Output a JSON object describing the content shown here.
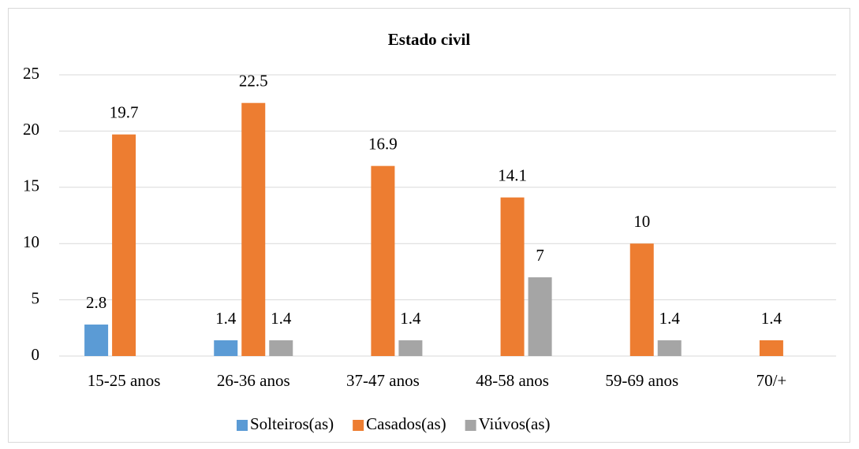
{
  "chart_data": {
    "type": "bar",
    "title": "Estado civil",
    "categories": [
      "15-25 anos",
      "26-36 anos",
      "37-47 anos",
      "48-58 anos",
      "59-69 anos",
      "70/+"
    ],
    "series": [
      {
        "name": "Solteiros(as)",
        "color": "#5b9bd5",
        "values": [
          2.8,
          1.4,
          null,
          null,
          null,
          null
        ]
      },
      {
        "name": "Casados(as)",
        "color": "#ed7d31",
        "values": [
          19.7,
          22.5,
          16.9,
          14.1,
          10,
          1.4
        ]
      },
      {
        "name": "Viúvos(as)",
        "color": "#a5a5a5",
        "values": [
          null,
          1.4,
          1.4,
          7,
          1.4,
          null
        ]
      }
    ],
    "ylim": [
      0,
      25
    ],
    "yticks": [
      0,
      5,
      10,
      15,
      20,
      25
    ],
    "grid": true,
    "legend": "bottom"
  }
}
